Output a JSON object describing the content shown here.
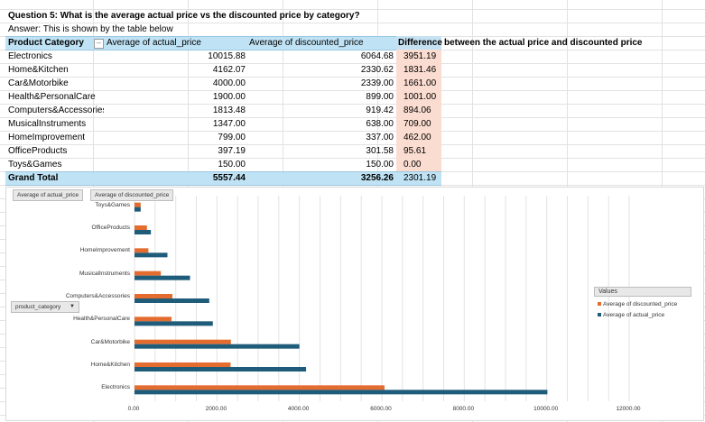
{
  "question": "Question 5: What is the average actual price vs the discounted price by category?",
  "answer": "Answer: This is shown by the table below",
  "table": {
    "headers": {
      "category": "Product Category",
      "filter_glyph": "--",
      "actual": "Average of actual_price",
      "discounted": "Average of discounted_price",
      "difference": "Difference",
      "difference_note": "between the actual price and discounted price"
    },
    "rows": [
      {
        "category": "Electronics",
        "actual": "10015.88",
        "discounted": "6064.68",
        "difference": "3951.19"
      },
      {
        "category": "Home&Kitchen",
        "actual": "4162.07",
        "discounted": "2330.62",
        "difference": "1831.46"
      },
      {
        "category": "Car&Motorbike",
        "actual": "4000.00",
        "discounted": "2339.00",
        "difference": "1661.00"
      },
      {
        "category": "Health&PersonalCare",
        "actual": "1900.00",
        "discounted": "899.00",
        "difference": "1001.00"
      },
      {
        "category": "Computers&Accessories",
        "actual": "1813.48",
        "discounted": "919.42",
        "difference": "894.06"
      },
      {
        "category": "MusicalInstruments",
        "actual": "1347.00",
        "discounted": "638.00",
        "difference": "709.00"
      },
      {
        "category": "HomeImprovement",
        "actual": "799.00",
        "discounted": "337.00",
        "difference": "462.00"
      },
      {
        "category": "OfficeProducts",
        "actual": "397.19",
        "discounted": "301.58",
        "difference": "95.61"
      },
      {
        "category": "Toys&Games",
        "actual": "150.00",
        "discounted": "150.00",
        "difference": "0.00"
      }
    ],
    "total": {
      "category": "Grand Total",
      "actual": "5557.44",
      "discounted": "3256.26",
      "difference": "2301.19"
    }
  },
  "chart_buttons": {
    "actual": "Average of actual_price",
    "discounted": "Average of discounted_price",
    "axis_field": "product_category",
    "axis_field_glyph": "▼"
  },
  "chart_data": {
    "type": "bar",
    "orientation": "horizontal",
    "categories": [
      "Toys&Games",
      "OfficeProducts",
      "HomeImprovement",
      "MusicalInstruments",
      "Computers&Accessories",
      "Health&PersonalCare",
      "Car&Motorbike",
      "Home&Kitchen",
      "Electronics"
    ],
    "category_labels": [
      "Toys&Games",
      "OfficeProducts",
      "HomeImprovement",
      "MusicalInstruments",
      "Computers&Accessories",
      "Health&PersonalCare",
      "Car&Motorbike",
      "Home&Kitchen",
      "Electronics"
    ],
    "series": [
      {
        "name": "Average of discounted_price",
        "color": "#e46c2e",
        "values": [
          150.0,
          301.58,
          337.0,
          638.0,
          919.42,
          899.0,
          2339.0,
          2330.62,
          6064.68
        ]
      },
      {
        "name": "Average of actual_price",
        "color": "#1f5c7a",
        "values": [
          150.0,
          397.19,
          799.0,
          1347.0,
          1813.48,
          1900.0,
          4000.0,
          4162.07,
          10015.88
        ]
      }
    ],
    "xlim": [
      0,
      12000
    ],
    "xticks": [
      "0.00",
      "2000.00",
      "4000.00",
      "6000.00",
      "8000.00",
      "10000.00",
      "12000.00"
    ],
    "xtick_values": [
      0,
      2000,
      4000,
      6000,
      8000,
      10000,
      12000
    ],
    "legend_title": "Values",
    "legend_position": "right",
    "grid": true
  }
}
